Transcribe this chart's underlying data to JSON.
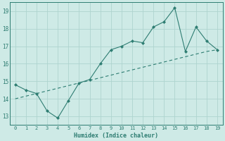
{
  "x": [
    0,
    1,
    2,
    3,
    4,
    5,
    6,
    7,
    8,
    9,
    10,
    11,
    12,
    13,
    14,
    15,
    16,
    17,
    18,
    19
  ],
  "y_main": [
    14.8,
    14.5,
    14.3,
    13.3,
    12.9,
    13.9,
    14.9,
    15.1,
    16.0,
    16.8,
    17.0,
    17.3,
    17.2,
    18.1,
    18.4,
    19.2,
    16.7,
    18.1,
    17.3,
    16.8
  ],
  "y_trend": [
    14.0,
    14.15,
    14.3,
    14.45,
    14.6,
    14.75,
    14.9,
    15.05,
    15.2,
    15.35,
    15.5,
    15.65,
    15.8,
    15.95,
    16.1,
    16.25,
    16.4,
    16.55,
    16.7,
    16.8
  ],
  "line_color": "#2e7d72",
  "bg_color": "#ceeae6",
  "grid_color": "#aed4cf",
  "xlabel": "Humidex (Indice chaleur)",
  "xlim": [
    -0.5,
    19.5
  ],
  "ylim": [
    12.5,
    19.5
  ],
  "yticks": [
    13,
    14,
    15,
    16,
    17,
    18,
    19
  ],
  "xticks": [
    0,
    1,
    2,
    3,
    4,
    5,
    6,
    7,
    8,
    9,
    10,
    11,
    12,
    13,
    14,
    15,
    16,
    17,
    18,
    19
  ]
}
